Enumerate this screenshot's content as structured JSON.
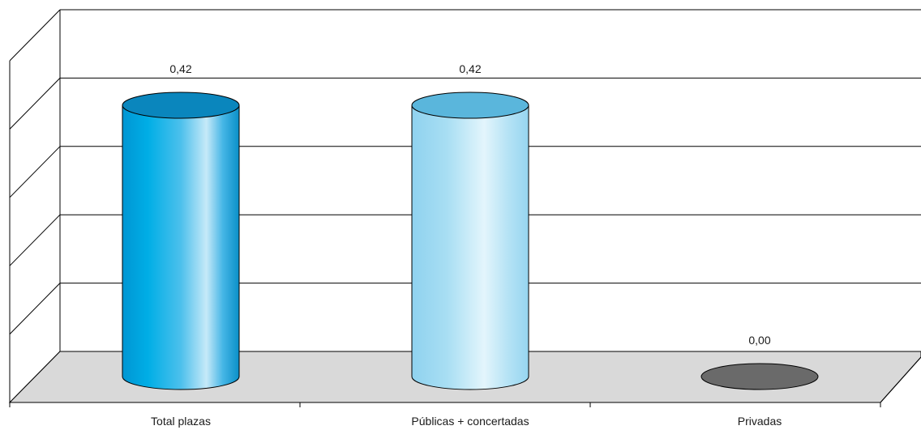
{
  "chart_data": {
    "type": "bar",
    "style": "3d-cylinder",
    "categories": [
      "Total plazas",
      "Públicas + concertadas",
      "Privadas"
    ],
    "values": [
      0.42,
      0.42,
      0.0
    ],
    "value_labels": [
      "0,42",
      "0,42",
      "0,00"
    ],
    "colors": {
      "bar_1": "#00a3dd",
      "bar_2": "#a6dcf2",
      "bar_3": "#6a6a6a",
      "floor": "#d9d9d9",
      "grid": "#000000"
    },
    "ylim": [
      0,
      0.5
    ],
    "grid": true,
    "legend": "none"
  }
}
